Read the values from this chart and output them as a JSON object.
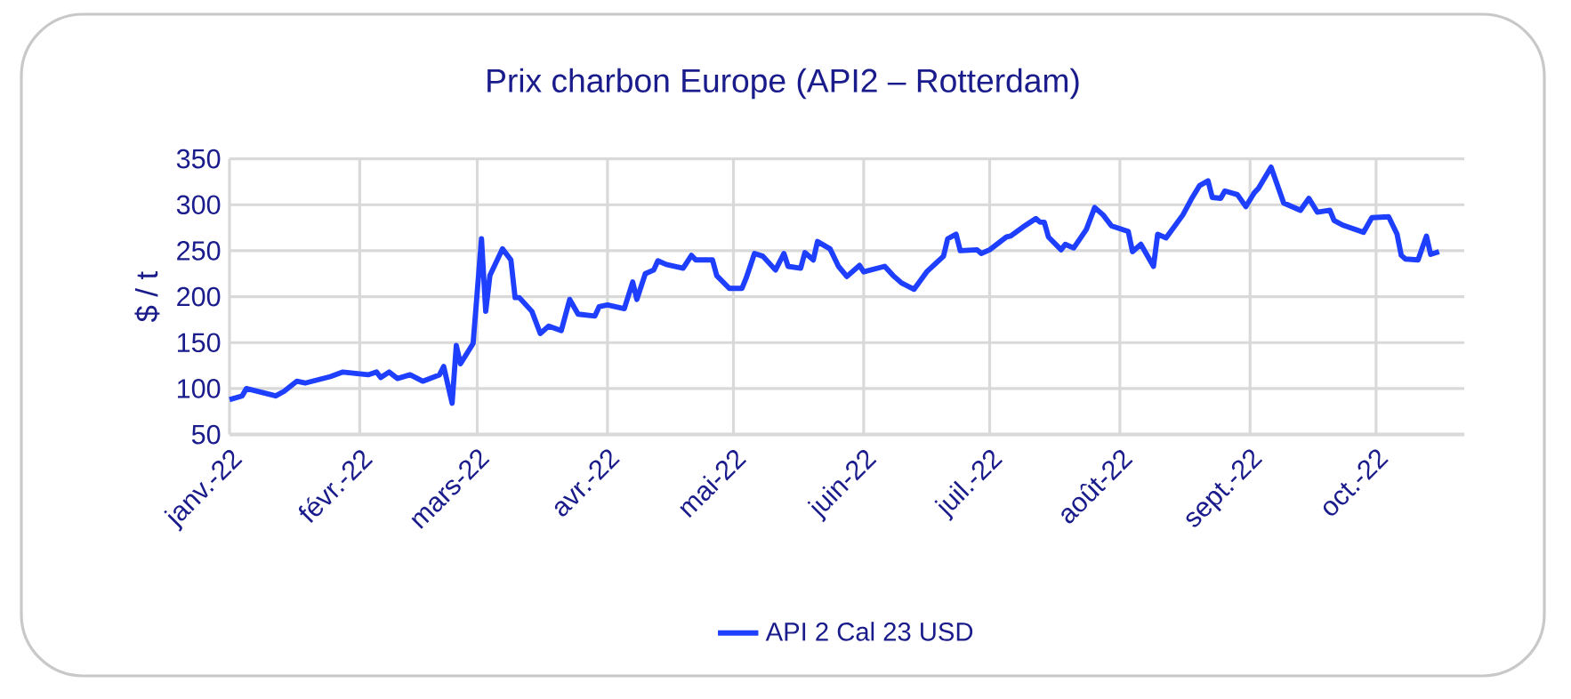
{
  "chart_data": {
    "type": "line",
    "title": "Prix charbon Europe (API2 – Rotterdam)",
    "ylabel": "$ / t",
    "x": [
      "2022-01-01",
      "2022-01-04",
      "2022-01-05",
      "2022-01-12",
      "2022-01-14",
      "2022-01-17",
      "2022-01-19",
      "2022-01-25",
      "2022-01-28",
      "2022-02-03",
      "2022-02-05",
      "2022-02-06",
      "2022-02-08",
      "2022-02-10",
      "2022-02-13",
      "2022-02-16",
      "2022-02-20",
      "2022-02-21",
      "2022-02-23",
      "2022-02-24",
      "2022-02-25",
      "2022-02-28",
      "2022-03-02",
      "2022-03-03",
      "2022-03-04",
      "2022-03-07",
      "2022-03-09",
      "2022-03-10",
      "2022-03-11",
      "2022-03-14",
      "2022-03-16",
      "2022-03-18",
      "2022-03-21",
      "2022-03-23",
      "2022-03-25",
      "2022-03-29",
      "2022-03-30",
      "2022-04-01",
      "2022-04-05",
      "2022-04-07",
      "2022-04-08",
      "2022-04-10",
      "2022-04-12",
      "2022-04-13",
      "2022-04-15",
      "2022-04-19",
      "2022-04-21",
      "2022-04-22",
      "2022-04-26",
      "2022-04-27",
      "2022-04-30",
      "2022-05-03",
      "2022-05-04",
      "2022-05-06",
      "2022-05-08",
      "2022-05-11",
      "2022-05-13",
      "2022-05-14",
      "2022-05-17",
      "2022-05-18",
      "2022-05-20",
      "2022-05-21",
      "2022-05-24",
      "2022-05-26",
      "2022-05-28",
      "2022-05-31",
      "2022-06-01",
      "2022-06-06",
      "2022-06-08",
      "2022-06-10",
      "2022-06-13",
      "2022-06-16",
      "2022-06-20",
      "2022-06-21",
      "2022-06-23",
      "2022-06-24",
      "2022-06-28",
      "2022-06-29",
      "2022-07-01",
      "2022-07-05",
      "2022-07-06",
      "2022-07-09",
      "2022-07-12",
      "2022-07-13",
      "2022-07-14",
      "2022-07-15",
      "2022-07-18",
      "2022-07-19",
      "2022-07-21",
      "2022-07-24",
      "2022-07-26",
      "2022-07-28",
      "2022-07-30",
      "2022-08-03",
      "2022-08-04",
      "2022-08-06",
      "2022-08-09",
      "2022-08-10",
      "2022-08-12",
      "2022-08-16",
      "2022-08-18",
      "2022-08-20",
      "2022-08-22",
      "2022-08-23",
      "2022-08-25",
      "2022-08-26",
      "2022-08-29",
      "2022-08-31",
      "2022-09-02",
      "2022-09-03",
      "2022-09-06",
      "2022-09-09",
      "2022-09-13",
      "2022-09-15",
      "2022-09-17",
      "2022-09-20",
      "2022-09-21",
      "2022-09-23",
      "2022-09-28",
      "2022-09-30",
      "2022-10-04",
      "2022-10-06",
      "2022-10-07",
      "2022-10-08",
      "2022-10-11",
      "2022-10-13",
      "2022-10-14",
      "2022-10-16"
    ],
    "series": [
      {
        "name": "API 2 Cal 23 USD",
        "color": "#1f3fff",
        "values": [
          88,
          92,
          100,
          92,
          97,
          108,
          106,
          113,
          118,
          115,
          118,
          112,
          118,
          111,
          115,
          108,
          115,
          124,
          84,
          147,
          127,
          149,
          263,
          184,
          223,
          252,
          240,
          199,
          199,
          184,
          160,
          168,
          163,
          197,
          181,
          179,
          189,
          191,
          187,
          216,
          197,
          225,
          229,
          239,
          235,
          231,
          245,
          240,
          240,
          223,
          209,
          209,
          220,
          247,
          244,
          229,
          247,
          233,
          231,
          248,
          240,
          260,
          252,
          233,
          222,
          234,
          227,
          233,
          223,
          215,
          208,
          227,
          244,
          263,
          268,
          250,
          251,
          247,
          251,
          265,
          266,
          276,
          285,
          281,
          281,
          265,
          251,
          257,
          253,
          273,
          297,
          289,
          277,
          271,
          249,
          257,
          233,
          268,
          264,
          289,
          306,
          321,
          326,
          308,
          307,
          315,
          311,
          298,
          313,
          318,
          341,
          302,
          294,
          307,
          292,
          294,
          283,
          278,
          270,
          286,
          287,
          268,
          245,
          241,
          240,
          266,
          246,
          249
        ]
      }
    ],
    "xlim": [
      "2022-01-01",
      "2022-10-22"
    ],
    "xticks": [
      {
        "value": "2022-01-01",
        "label": "janv.-22"
      },
      {
        "value": "2022-02-01",
        "label": "févr.-22"
      },
      {
        "value": "2022-03-01",
        "label": "mars-22"
      },
      {
        "value": "2022-04-01",
        "label": "avr.-22"
      },
      {
        "value": "2022-05-01",
        "label": "mai-22"
      },
      {
        "value": "2022-06-01",
        "label": "juin-22"
      },
      {
        "value": "2022-07-01",
        "label": "juil.-22"
      },
      {
        "value": "2022-08-01",
        "label": "août-22"
      },
      {
        "value": "2022-09-01",
        "label": "sept.-22"
      },
      {
        "value": "2022-10-01",
        "label": "oct.-22"
      }
    ],
    "ylim": [
      50,
      350
    ],
    "yticks": [
      50,
      100,
      150,
      200,
      250,
      300,
      350
    ],
    "grid": true,
    "legend": "bottom",
    "marker": "none",
    "line_style": "solid"
  }
}
